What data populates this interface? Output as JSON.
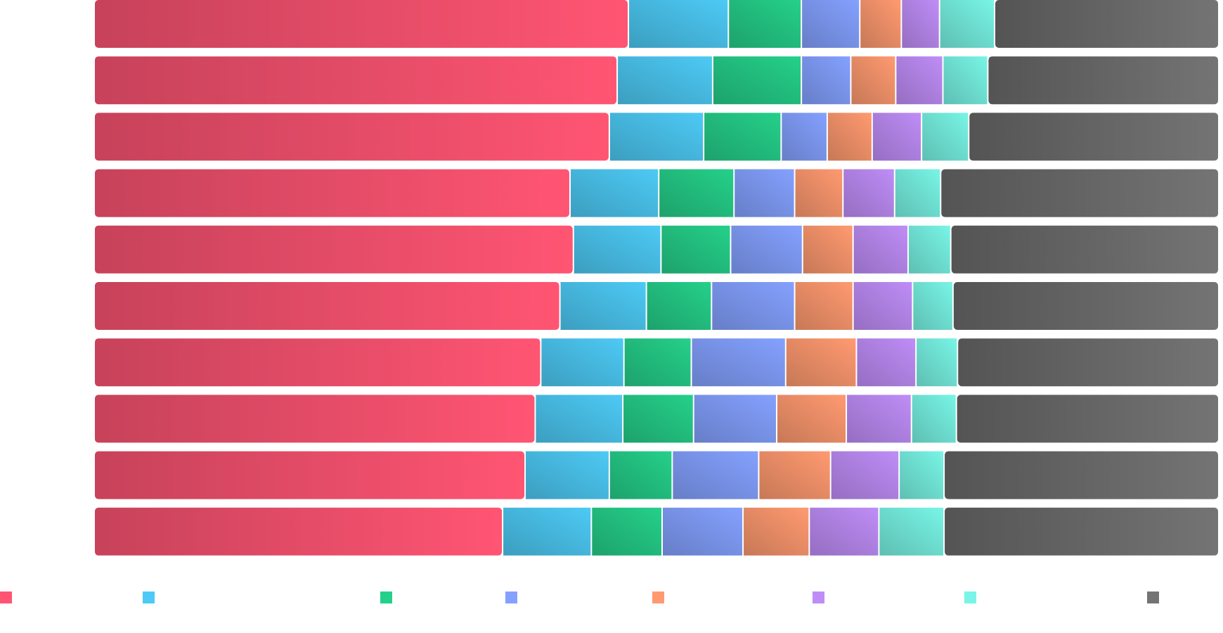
{
  "chart_data": {
    "type": "bar",
    "orientation": "horizontal",
    "stacking": "percent",
    "legend_placement": "bottom",
    "grid": false,
    "xlim": [
      0,
      100
    ],
    "categories": [
      "",
      "",
      "",
      "",
      "",
      "",
      "",
      "",
      "",
      ""
    ],
    "series": [
      {
        "color": "#ff5573",
        "values": [
          47.5,
          46.5,
          45.8,
          42.3,
          42.6,
          41.4,
          39.7,
          39.2,
          38.3,
          36.3
        ]
      },
      {
        "color": "#4dcaf5",
        "values": [
          8.9,
          8.5,
          8.4,
          7.9,
          7.8,
          7.7,
          7.4,
          7.8,
          7.5,
          7.9
        ]
      },
      {
        "color": "#25d08a",
        "values": [
          6.5,
          7.9,
          6.9,
          6.7,
          6.2,
          5.8,
          6.0,
          6.3,
          5.6,
          6.3
        ]
      },
      {
        "color": "#84a1ff",
        "values": [
          5.2,
          4.4,
          4.1,
          5.4,
          6.4,
          7.4,
          8.4,
          7.4,
          7.7,
          7.2
        ]
      },
      {
        "color": "#ff9a70",
        "values": [
          3.7,
          4.0,
          4.0,
          4.3,
          4.5,
          5.2,
          6.3,
          6.2,
          6.4,
          5.9
        ]
      },
      {
        "color": "#bf8df7",
        "values": [
          3.4,
          4.2,
          4.4,
          4.6,
          4.9,
          5.3,
          5.3,
          5.8,
          6.1,
          6.2
        ]
      },
      {
        "color": "#78f5e6",
        "values": [
          4.9,
          4.0,
          4.2,
          4.1,
          3.8,
          3.6,
          3.7,
          4.0,
          4.0,
          5.8
        ]
      },
      {
        "color": "#747474",
        "values": [
          19.9,
          20.5,
          22.2,
          24.7,
          23.8,
          23.6,
          23.2,
          23.3,
          24.4,
          24.4
        ]
      }
    ]
  }
}
